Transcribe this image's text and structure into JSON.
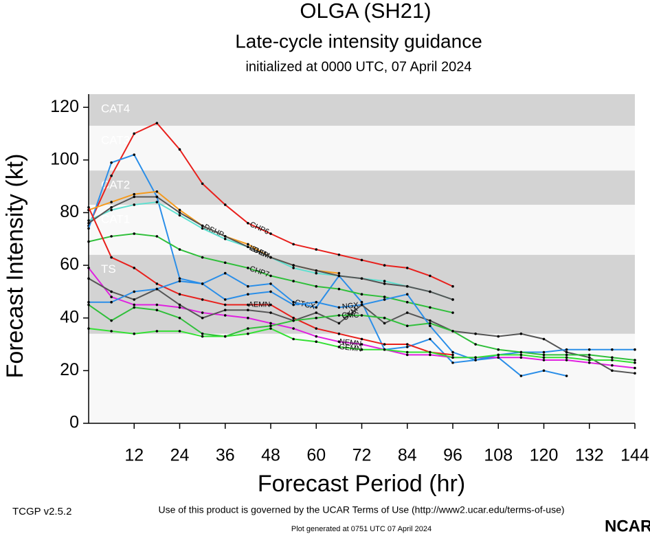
{
  "chart_data": {
    "type": "line",
    "title": "OLGA (SH21)",
    "subtitle": "Late-cycle intensity guidance",
    "initialized": "initialized at 0000 UTC, 07 April 2024",
    "x_label": "Forecast Period (hr)",
    "y_label": "Forecast Intensity (kt)",
    "xlim": [
      0,
      144
    ],
    "ylim": [
      0,
      125
    ],
    "xticks": [
      12,
      24,
      36,
      48,
      60,
      72,
      84,
      96,
      108,
      120,
      132,
      144
    ],
    "yticks": [
      0,
      20,
      40,
      60,
      80,
      100,
      120
    ],
    "bands": [
      {
        "label": "TS",
        "from": 34,
        "to": 64,
        "color": "#d3d3d3"
      },
      {
        "label": "CAT1",
        "from": 64,
        "to": 83,
        "color": "#f8f8f8"
      },
      {
        "label": "CAT2",
        "from": 83,
        "to": 96,
        "color": "#d3d3d3"
      },
      {
        "label": "CAT3",
        "from": 96,
        "to": 113,
        "color": "#f8f8f8"
      },
      {
        "label": "CAT4",
        "from": 113,
        "to": 125,
        "color": "#d3d3d3"
      }
    ],
    "below_band_color": "#f8f8f8",
    "x": [
      0,
      6,
      12,
      18,
      24,
      30,
      36,
      42,
      48,
      54,
      60,
      66,
      72,
      78,
      84,
      90,
      96,
      102,
      108,
      114,
      120,
      126,
      132,
      138,
      144
    ],
    "series": [
      {
        "name": "CHP6",
        "color": "#e8201c",
        "values": [
          75,
          94,
          110,
          114,
          104,
          91,
          83,
          76,
          72,
          68,
          66,
          64,
          62,
          60,
          59,
          56,
          52,
          null,
          null,
          null,
          null,
          null,
          null,
          null,
          null
        ]
      },
      {
        "name": "CTCX",
        "color": "#2a8ee8",
        "values": [
          74,
          99,
          102,
          86,
          55,
          53,
          57,
          52,
          53,
          46,
          44,
          56,
          46,
          28,
          29,
          32,
          23,
          24,
          25,
          18,
          20,
          18,
          null,
          null,
          null
        ]
      },
      {
        "name": "DSHP",
        "color": "#f59a1c",
        "values": [
          81,
          84,
          87,
          88,
          81,
          75,
          71,
          68,
          63,
          60,
          58,
          57,
          null,
          null,
          null,
          null,
          null,
          null,
          null,
          null,
          null,
          null,
          null,
          null,
          null
        ]
      },
      {
        "name": "SHIP",
        "color": "#5ee0d0",
        "values": [
          77,
          81,
          83,
          84,
          79,
          74,
          70,
          67,
          63,
          59,
          57,
          56,
          55,
          54,
          52,
          50,
          47,
          null,
          null,
          null,
          null,
          null,
          null,
          null,
          null
        ]
      },
      {
        "name": "LGEM",
        "color": "#555555",
        "values": [
          76,
          82,
          86,
          86,
          80,
          75,
          71,
          67,
          63,
          60,
          58,
          56,
          55,
          53,
          52,
          50,
          47,
          null,
          null,
          null,
          null,
          null,
          null,
          null,
          null
        ]
      },
      {
        "name": "CHP7",
        "color": "#2fbf3a",
        "values": [
          69,
          71,
          72,
          71,
          66,
          63,
          61,
          59,
          56,
          54,
          52,
          51,
          49,
          48,
          46,
          44,
          42,
          null,
          null,
          null,
          null,
          null,
          null,
          null,
          null
        ]
      },
      {
        "name": "AEMN",
        "color": "#e8201c",
        "values": [
          82,
          63,
          59,
          53,
          49,
          47,
          45,
          45,
          45,
          40,
          36,
          34,
          32,
          30,
          30,
          27,
          26,
          null,
          null,
          null,
          null,
          null,
          null,
          null,
          null
        ]
      },
      {
        "name": "NEMN",
        "color": "#e020e0",
        "values": [
          59,
          48,
          45,
          45,
          44,
          42,
          41,
          40,
          38,
          36,
          33,
          31,
          30,
          28,
          26,
          26,
          25,
          25,
          25,
          25,
          24,
          24,
          23,
          22,
          21
        ]
      },
      {
        "name": "UKM",
        "color": "#555555",
        "values": [
          55,
          50,
          47,
          51,
          45,
          40,
          43,
          43,
          42,
          39,
          42,
          38,
          45,
          38,
          42,
          39,
          35,
          34,
          33,
          34,
          32,
          27,
          25,
          20,
          19
        ]
      },
      {
        "name": "NGX",
        "color": "#2a8ee8",
        "values": [
          46,
          46,
          50,
          51,
          54,
          53,
          47,
          49,
          50,
          45,
          46,
          44,
          45,
          47,
          49,
          37,
          27,
          24,
          26,
          27,
          27,
          28,
          28,
          28,
          28
        ]
      },
      {
        "name": "CMC",
        "color": "#2fbf3a",
        "values": [
          45,
          39,
          44,
          43,
          40,
          34,
          33,
          36,
          37,
          39,
          40,
          41,
          41,
          40,
          37,
          38,
          35,
          30,
          28,
          27,
          26,
          26,
          26,
          25,
          24
        ]
      },
      {
        "name": "GEMN",
        "color": "#33e033",
        "values": [
          36,
          35,
          34,
          35,
          35,
          33,
          33,
          34,
          36,
          32,
          31,
          29,
          28,
          28,
          27,
          27,
          25,
          25,
          26,
          26,
          25,
          25,
          24,
          24,
          23
        ]
      }
    ],
    "terms": "Use of this product is governed by the UCAR Terms of Use (http://www2.ucar.edu/terms-of-use)",
    "version": "TCGP v2.5.2",
    "generated": "Plot generated at 0751 UTC   07 April 2024",
    "logo": "NCAR"
  }
}
